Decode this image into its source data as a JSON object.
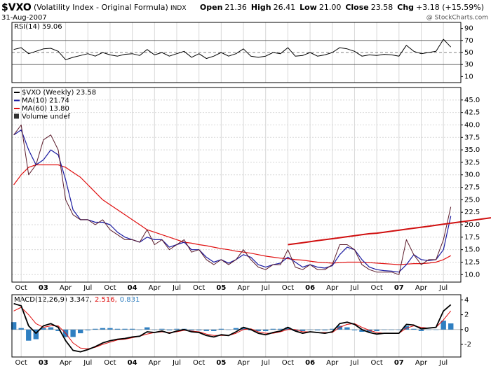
{
  "header": {
    "symbol": "$VXO",
    "name": "(Volatility Index - Original Formula)",
    "exchange": "INDX",
    "date": "31-Aug-2007",
    "quote": [
      {
        "label": "Open",
        "value": "21.36"
      },
      {
        "label": "High",
        "value": "26.41"
      },
      {
        "label": "Low",
        "value": "21.00"
      },
      {
        "label": "Close",
        "value": "23.58"
      },
      {
        "label": "Chg",
        "value": "+3.18 (+15.59%)"
      }
    ],
    "watermark": "@ StockCharts.com"
  },
  "chart_data": {
    "type": "line",
    "categories": [
      null,
      "Oct",
      null,
      null,
      "03",
      null,
      null,
      "Apr",
      null,
      null,
      "Jul",
      null,
      null,
      "Oct",
      null,
      null,
      "04",
      null,
      null,
      "Apr",
      null,
      null,
      "Jul",
      null,
      null,
      "Oct",
      null,
      null,
      "05",
      null,
      null,
      "Apr",
      null,
      null,
      "Jul",
      null,
      null,
      "Oct",
      null,
      null,
      "06",
      null,
      null,
      "Apr",
      null,
      null,
      "Jul",
      null,
      null,
      "Oct",
      null,
      null,
      "07",
      null,
      null,
      "Apr",
      null,
      null,
      "Jul",
      null
    ],
    "ylim": [
      8.5,
      47.5
    ],
    "yticks": [
      {
        "value": 10,
        "label": "10.0"
      },
      {
        "value": 12.5,
        "label": "12.5"
      },
      {
        "value": 15,
        "label": "15.0"
      },
      {
        "value": 17.5,
        "label": "17.5"
      },
      {
        "value": 20,
        "label": "20.0"
      },
      {
        "value": 22.5,
        "label": "22.5"
      },
      {
        "value": 25,
        "label": "25.0"
      },
      {
        "value": 27.5,
        "label": "27.5"
      },
      {
        "value": 30,
        "label": "30.0"
      },
      {
        "value": 32.5,
        "label": "32.5"
      },
      {
        "value": 35,
        "label": "35.0"
      },
      {
        "value": 37.5,
        "label": "37.5"
      },
      {
        "value": 40,
        "label": "40.0"
      },
      {
        "value": 42.5,
        "label": "42.5"
      },
      {
        "value": 45,
        "label": "45.0"
      }
    ],
    "grid": true,
    "series": [
      {
        "name": "$VXO (Weekly) 23.58",
        "color": "#5a1a2a",
        "values": [
          38,
          40,
          30,
          32,
          37,
          38,
          35,
          25,
          22,
          21,
          21,
          20,
          21,
          19,
          18,
          17,
          17,
          16.5,
          19,
          16,
          17,
          15,
          16,
          17,
          14.5,
          15,
          13,
          12,
          13,
          12,
          13,
          15,
          13,
          11.5,
          11,
          12,
          12,
          15,
          11.5,
          11,
          12,
          11,
          11,
          12,
          16,
          16,
          15,
          12,
          11,
          10.5,
          10.5,
          10.5,
          10,
          17,
          14,
          12,
          13,
          13,
          17,
          23.58
        ]
      },
      {
        "name": "MA(10) 21.74",
        "color": "#1a1aa0",
        "values": [
          38,
          39,
          35,
          32,
          33,
          35,
          34,
          29,
          23,
          21,
          21,
          20.5,
          20.5,
          20,
          18.5,
          17.5,
          17,
          16.5,
          17.5,
          17,
          17,
          15.5,
          16,
          16.5,
          15,
          15,
          13.5,
          12.5,
          13,
          12.3,
          13,
          14,
          13.5,
          12,
          11.5,
          12,
          12.3,
          13.5,
          12.5,
          11.5,
          12,
          11.5,
          11.3,
          11.8,
          14,
          15.5,
          15,
          13,
          11.5,
          11,
          10.8,
          10.7,
          10.5,
          12,
          14,
          13,
          12.8,
          13,
          15,
          21.74
        ]
      },
      {
        "name": "MA(60) 13.80",
        "color": "#e01010",
        "values": [
          28,
          30,
          31.5,
          32,
          32,
          32,
          32,
          31.5,
          30.5,
          29.5,
          28,
          26.5,
          25,
          24,
          23,
          22,
          21,
          20,
          19,
          18.5,
          18,
          17.5,
          17,
          16.5,
          16.3,
          16,
          15.8,
          15.5,
          15.2,
          15,
          14.7,
          14.5,
          14.3,
          14,
          13.7,
          13.5,
          13.3,
          13.2,
          13,
          12.9,
          12.7,
          12.5,
          12.4,
          12.3,
          12.4,
          12.5,
          12.5,
          12.5,
          12.4,
          12.3,
          12.2,
          12.1,
          12,
          12.1,
          12.2,
          12.2,
          12.3,
          12.5,
          13,
          13.8
        ]
      }
    ],
    "volume_label": "Volume undef",
    "trendline": {
      "color": "#d01010",
      "values": [
        null,
        null,
        null,
        null,
        null,
        null,
        null,
        null,
        null,
        null,
        null,
        null,
        null,
        null,
        null,
        null,
        null,
        null,
        null,
        null,
        null,
        null,
        null,
        null,
        null,
        null,
        null,
        null,
        null,
        null,
        null,
        null,
        null,
        null,
        null,
        null,
        null,
        16.0,
        16.2,
        16.4,
        16.6,
        16.8,
        17.0,
        17.2,
        17.4,
        17.6,
        17.8,
        18.0,
        18.2,
        18.3,
        18.5,
        18.7,
        18.9,
        19.1,
        19.3,
        19.5,
        19.7,
        19.9,
        20.1,
        20.3
      ]
    },
    "rsi": {
      "title": "RSI(14) 59.06",
      "color": "#000000",
      "ylim": [
        0,
        100
      ],
      "yticks": [
        90,
        70,
        50,
        30,
        10
      ],
      "reference_lines": [
        70,
        50,
        30
      ],
      "values": [
        55,
        58,
        48,
        52,
        56,
        57,
        52,
        38,
        42,
        45,
        48,
        44,
        50,
        46,
        44,
        47,
        48,
        45,
        55,
        46,
        50,
        44,
        48,
        52,
        42,
        48,
        40,
        44,
        50,
        44,
        48,
        56,
        44,
        42,
        44,
        50,
        48,
        58,
        44,
        45,
        50,
        44,
        46,
        50,
        58,
        56,
        52,
        44,
        46,
        45,
        47,
        46,
        44,
        62,
        52,
        48,
        50,
        52,
        72,
        59.06
      ]
    },
    "macd": {
      "legend": [
        {
          "text": "MACD(12,26,9) 3.347,",
          "color": "#000000"
        },
        {
          "text": "2.516,",
          "color": "#e01010"
        },
        {
          "text": "0.831",
          "color": "#2f7fc1"
        }
      ],
      "ylim": [
        -3.7,
        4.7
      ],
      "yticks": [
        4,
        2,
        0,
        -2
      ],
      "macd": {
        "color": "#000000",
        "values": [
          3.5,
          3.2,
          0.5,
          -0.5,
          0.5,
          0.8,
          0.3,
          -1.5,
          -2.8,
          -3,
          -2.7,
          -2.3,
          -1.8,
          -1.5,
          -1.3,
          -1.2,
          -1,
          -0.9,
          -0.3,
          -0.4,
          -0.2,
          -0.5,
          -0.2,
          0,
          -0.3,
          -0.4,
          -0.8,
          -1,
          -0.7,
          -0.8,
          -0.3,
          0.3,
          0,
          -0.5,
          -0.7,
          -0.4,
          -0.2,
          0.3,
          -0.2,
          -0.5,
          -0.3,
          -0.4,
          -0.5,
          -0.3,
          0.8,
          1,
          0.7,
          0,
          -0.4,
          -0.6,
          -0.5,
          -0.5,
          -0.5,
          0.7,
          0.6,
          0.1,
          0.2,
          0.3,
          2.5,
          3.347
        ]
      },
      "signal": {
        "color": "#e01010",
        "values": [
          2.5,
          3,
          2,
          0.8,
          0.3,
          0.5,
          0.5,
          -0.5,
          -1.8,
          -2.5,
          -2.6,
          -2.4,
          -2,
          -1.7,
          -1.4,
          -1.3,
          -1.1,
          -0.9,
          -0.6,
          -0.4,
          -0.3,
          -0.4,
          -0.3,
          -0.1,
          -0.2,
          -0.3,
          -0.6,
          -0.8,
          -0.8,
          -0.8,
          -0.5,
          0,
          0.1,
          -0.3,
          -0.5,
          -0.5,
          -0.3,
          0,
          0,
          -0.3,
          -0.3,
          -0.4,
          -0.4,
          -0.4,
          0.3,
          0.7,
          0.8,
          0.3,
          -0.1,
          -0.4,
          -0.5,
          -0.5,
          -0.5,
          0.2,
          0.5,
          0.3,
          0.2,
          0.3,
          1.3,
          2.516
        ]
      },
      "histogram": {
        "color": "#2f7fc1",
        "values": [
          1,
          0.2,
          -1.5,
          -1.3,
          0.2,
          0.3,
          -0.2,
          -1,
          -1,
          -0.5,
          -0.1,
          0.1,
          0.2,
          0.2,
          0.1,
          0.1,
          0.1,
          0,
          0.3,
          0,
          0.1,
          -0.1,
          0.1,
          0.1,
          -0.1,
          -0.1,
          -0.2,
          -0.2,
          0.1,
          0,
          0.2,
          0.3,
          -0.1,
          -0.2,
          -0.2,
          0.1,
          0.1,
          0.3,
          -0.2,
          -0.2,
          0,
          -0.1,
          -0.1,
          0.1,
          0.5,
          0.3,
          -0.1,
          -0.3,
          -0.3,
          -0.2,
          0,
          0,
          0,
          0.5,
          0.1,
          -0.2,
          0,
          0,
          1.2,
          0.831
        ]
      }
    }
  }
}
